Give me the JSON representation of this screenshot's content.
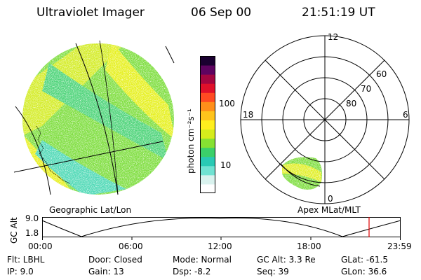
{
  "header": {
    "instrument": "Ultraviolet Imager",
    "date": "06 Sep 00",
    "time": "21:51:19 UT"
  },
  "colorbar": {
    "unit_label": "photon cm⁻²s⁻¹",
    "tick_100": "100",
    "tick_10": "10",
    "colors": [
      "#ffffff",
      "#d9f2ee",
      "#70e2d2",
      "#29c9b4",
      "#3bd06a",
      "#86e132",
      "#d6ec1c",
      "#ffef1e",
      "#ffc41c",
      "#ff8f1a",
      "#ff4a22",
      "#e0102a",
      "#a40640",
      "#5e0360",
      "#1a0030"
    ]
  },
  "polar": {
    "mlt_top": "12",
    "mlt_left": "18",
    "mlt_right": "6",
    "mlt_bottom": "0",
    "lat_60": "60",
    "lat_70": "70",
    "lat_80": "80"
  },
  "labels": {
    "geo": "Geographic Lat/Lon",
    "apex": "Apex MLat/MLT"
  },
  "altplot": {
    "ylabel": "GC Alt",
    "ytick_top": "9.0",
    "ytick_bottom": "1.8",
    "xticks": [
      "00:00",
      "06:00",
      "12:00",
      "18:00",
      "23:59"
    ],
    "cursor_color": "#e00000"
  },
  "info": {
    "flt": "Flt: LBHL",
    "ip": "IP:  9.0",
    "door": "Door: Closed",
    "gain": "Gain: 13",
    "mode": "Mode: Normal",
    "dsp": "Dsp:   -8.2",
    "gcalt": "GC Alt: 3.3 Re",
    "seq": "Seq: 39",
    "glat": "GLat: -61.5",
    "glon": "GLon:  36.6"
  }
}
